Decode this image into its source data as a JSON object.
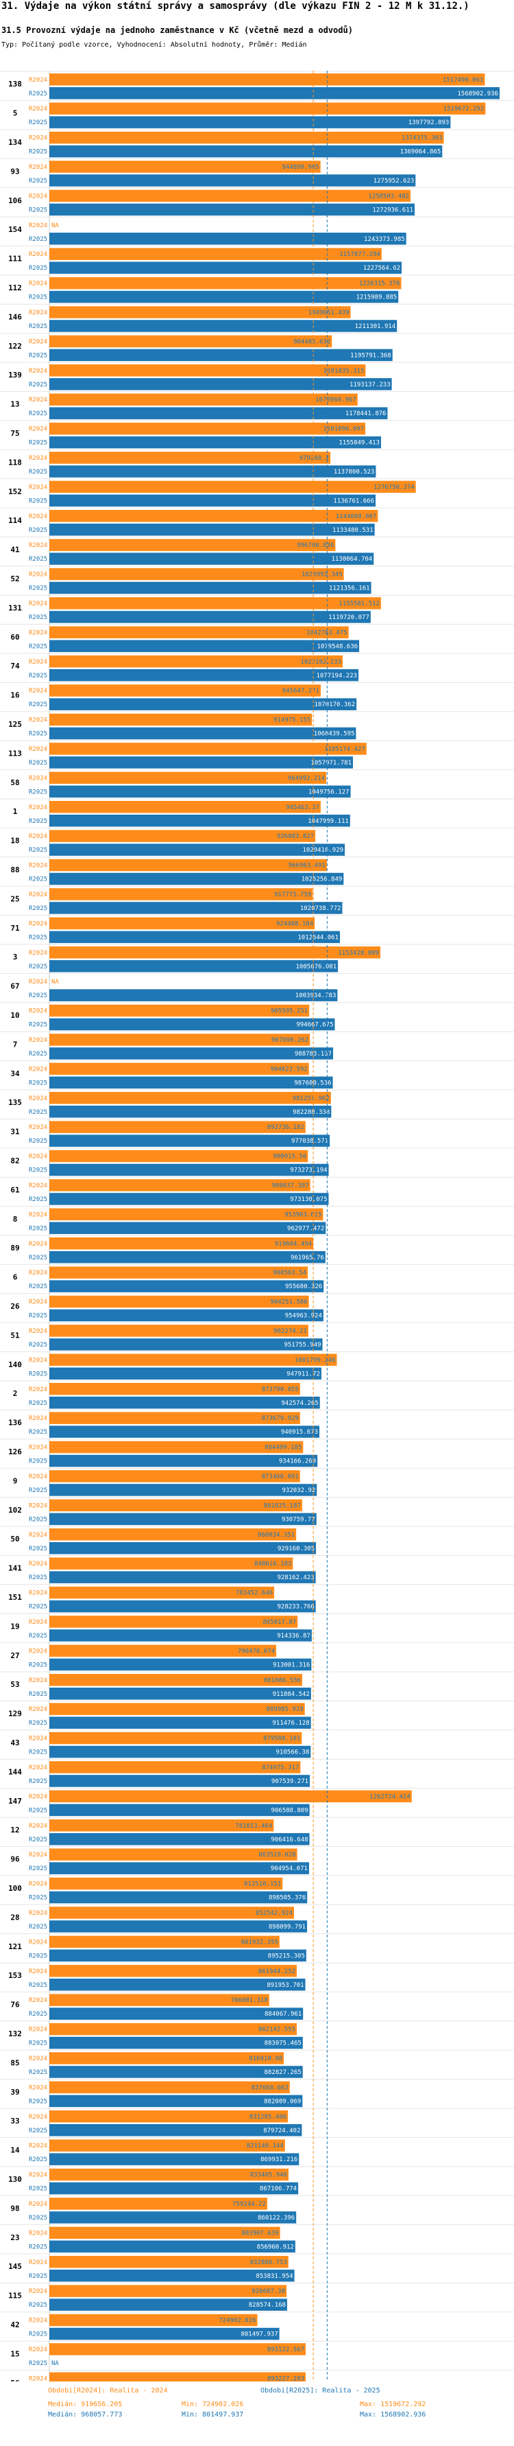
{
  "header": {
    "title": "31. Výdaje na výkon státní správy a samosprávy (dle výkazu FIN 2 - 12 M k 31.12.)",
    "subtitle": "31.5 Provozní výdaje na jednoho zaměstnance v Kč (včetně mezd a odvodů)",
    "params": "Typ: Počítaný podle vzorce, Vyhodnocení: Absolutní hodnoty, Průměr: Medián"
  },
  "colors": {
    "r2024": "#ff8c1a",
    "r2025": "#1f77b4"
  },
  "chart_data": {
    "type": "bar",
    "orientation": "horizontal",
    "xlim": [
      0,
      1600000
    ],
    "series_names": [
      "R2024",
      "R2025"
    ],
    "categories": [
      "138",
      "5",
      "134",
      "93",
      "106",
      "154",
      "111",
      "112",
      "146",
      "122",
      "139",
      "13",
      "75",
      "118",
      "152",
      "114",
      "41",
      "52",
      "131",
      "60",
      "74",
      "16",
      "125",
      "113",
      "58",
      "1",
      "18",
      "88",
      "25",
      "71",
      "3",
      "67",
      "10",
      "7",
      "34",
      "135",
      "31",
      "82",
      "61",
      "8",
      "89",
      "6",
      "26",
      "51",
      "140",
      "2",
      "136",
      "126",
      "9",
      "102",
      "50",
      "141",
      "151",
      "19",
      "27",
      "53",
      "129",
      "43",
      "144",
      "147",
      "12",
      "96",
      "100",
      "28",
      "121",
      "153",
      "76",
      "132",
      "85",
      "39",
      "33",
      "14",
      "130",
      "98",
      "23",
      "145",
      "115",
      "42",
      "15",
      "56"
    ],
    "series": [
      {
        "name": "R2024",
        "values": [
          1517490.061,
          1519672.292,
          1374375.303,
          944890.985,
          1258503.482,
          null,
          1157877.294,
          1226315.376,
          1049651.439,
          984485.632,
          1101835.315,
          1073960.967,
          1101096.097,
          979260.2,
          1276750.374,
          1144688.087,
          996780.836,
          1025993.345,
          1155581.512,
          1042763.475,
          1022182.233,
          945647.271,
          914975.155,
          1105174.427,
          964992.214,
          945463.37,
          926883.827,
          966963.491,
          917775.759,
          924488.184,
          1153428.809,
          null,
          905595.251,
          907890.262,
          904622.592,
          981251.962,
          892736.182,
          900915.56,
          909037.387,
          953903.615,
          919604.494,
          900563.54,
          904251.586,
          902274.21,
          1001799.246,
          873790.055,
          873679.929,
          884499.185,
          873460.891,
          881025.187,
          860034.351,
          848616.183,
          783452.646,
          865017.87,
          790476.674,
          881086.556,
          889985.919,
          879580.101,
          874975.317,
          1262724.424,
          781813.464,
          863519.028,
          812510.151,
          852542.924,
          801932.355,
          861944.252,
          766001.318,
          862142.555,
          816910.98,
          837668.662,
          831285.406,
          821140.144,
          833405.946,
          759244.22,
          803907.639,
          832888.753,
          826607.38,
          724902.026,
          893122.567,
          893227.203
        ]
      },
      {
        "name": "R2025",
        "values": [
          1568902.936,
          1397792.893,
          1369064.865,
          1275952.623,
          1272936.611,
          1243373.985,
          1227564.62,
          1215989.885,
          1211301.914,
          1195791.368,
          1193137.233,
          1178441.876,
          1155849.413,
          1137800.523,
          1136761.666,
          1133480.531,
          1130064.704,
          1121356.161,
          1119720.077,
          1079548.636,
          1077194.223,
          1070170.362,
          1068439.595,
          1057971.781,
          1049756.127,
          1047989.111,
          1029416.929,
          1025256.849,
          1020738.772,
          1012544.061,
          1005676.001,
          1003934.783,
          994667.675,
          988783.137,
          987600.536,
          982280.338,
          977038.571,
          973273.194,
          973130.075,
          962977.472,
          961965.76,
          955680.326,
          954963.924,
          951755.949,
          947911.72,
          942574.265,
          940915.673,
          934166.269,
          932032.92,
          930759.77,
          929160.305,
          928162.423,
          928233.766,
          914336.87,
          913001.316,
          911884.542,
          911476.128,
          910566.38,
          907539.271,
          906588.809,
          906416.648,
          904954.071,
          898505.376,
          898099.791,
          895215.305,
          891953.701,
          884067.961,
          883075.465,
          882827.265,
          882009.069,
          879724.402,
          869931.216,
          867106.774,
          860122.396,
          856960.912,
          853831.954,
          828574.168,
          801497.937,
          null,
          null
        ]
      }
    ],
    "legend": [
      {
        "label": "Obdobi[R2024]: Realita - 2024",
        "median": "Medián: 919656.205",
        "min": "Min: 724902.026",
        "max": "Max: 1519672.292"
      },
      {
        "label": "Obdobi[R2025]: Realita - 2025",
        "median": "Medián: 968057.773",
        "min": "Min: 801497.937",
        "max": "Max: 1568902.936"
      }
    ],
    "median_lines": [
      919656.205,
      968057.773
    ],
    "na_label": "NA"
  }
}
